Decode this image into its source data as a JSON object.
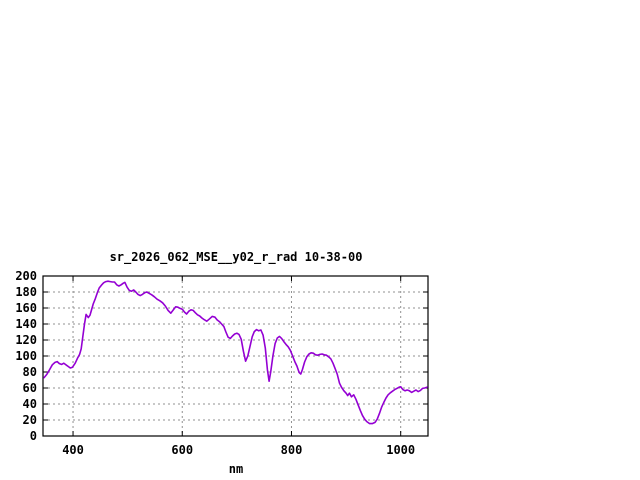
{
  "chart_data": {
    "type": "line",
    "title": "sr_2026_062_MSE__y02_r_rad 10-38-00",
    "xlabel": "nm",
    "ylabel": "",
    "xlim": [
      345,
      1050
    ],
    "ylim": [
      0,
      200
    ],
    "xticks": [
      400,
      600,
      800,
      1000
    ],
    "yticks": [
      0,
      20,
      40,
      60,
      80,
      100,
      120,
      140,
      160,
      180,
      200
    ],
    "grid": true,
    "legend_position": "none",
    "colors": {
      "line": "#9400d3",
      "grid": "#909090",
      "axis": "#000000",
      "background": "#ffffff"
    },
    "series": [
      {
        "name": "sr_2026_062_MSE__y02_r_rad",
        "x": [
          347,
          352,
          357,
          362,
          367,
          371,
          375,
          379,
          383,
          387,
          391,
          395,
          399,
          404,
          408,
          412,
          415,
          418,
          421,
          424,
          428,
          431,
          434,
          437,
          441,
          445,
          448,
          452,
          456,
          460,
          464,
          468,
          472,
          476,
          480,
          484,
          488,
          492,
          495,
          499,
          503,
          507,
          511,
          515,
          519,
          523,
          527,
          531,
          535,
          539,
          544,
          549,
          554,
          559,
          564,
          569,
          574,
          579,
          584,
          588,
          592,
          596,
          600,
          604,
          608,
          612,
          616,
          620,
          624,
          628,
          632,
          636,
          640,
          645,
          650,
          655,
          660,
          664,
          668,
          672,
          676,
          680,
          684,
          688,
          692,
          696,
          700,
          704,
          708,
          712,
          716,
          720,
          724,
          728,
          732,
          736,
          740,
          744,
          748,
          752,
          756,
          759,
          762,
          766,
          770,
          774,
          778,
          782,
          786,
          790,
          794,
          798,
          802,
          806,
          810,
          814,
          817,
          820,
          824,
          828,
          832,
          836,
          840,
          844,
          848,
          852,
          856,
          860,
          864,
          868,
          872,
          876,
          880,
          884,
          888,
          892,
          896,
          900,
          903,
          906,
          910,
          914,
          918,
          922,
          926,
          930,
          934,
          938,
          943,
          948,
          953,
          957,
          961,
          965,
          969,
          973,
          977,
          981,
          985,
          989,
          993,
          997,
          1000,
          1004,
          1008,
          1012,
          1016,
          1020,
          1024,
          1028,
          1032,
          1036,
          1040,
          1044,
          1048
        ],
        "y": [
          73,
          77,
          83,
          89,
          92,
          93,
          90.5,
          89.5,
          91,
          89,
          87,
          85,
          86,
          91,
          97,
          102,
          109,
          125,
          140,
          152,
          148,
          151,
          158,
          165,
          172,
          180,
          185,
          188.5,
          191.5,
          193,
          193.5,
          193,
          192.5,
          192.5,
          189,
          187.5,
          189,
          191,
          192,
          186,
          182,
          181,
          182.5,
          180,
          177,
          175.5,
          177,
          179,
          180,
          178.5,
          176.5,
          174,
          171,
          169,
          166.5,
          162.5,
          157,
          153.5,
          158,
          161.5,
          161,
          159.5,
          158.5,
          155,
          152.5,
          156,
          157.8,
          157,
          154,
          151.5,
          150,
          147.5,
          145.5,
          143.5,
          146.5,
          149.5,
          148.5,
          145,
          143,
          140,
          137,
          130,
          123.5,
          122,
          125,
          127.5,
          128.5,
          127,
          121,
          106,
          93.5,
          100,
          112,
          124,
          130.5,
          133,
          131.5,
          132.5,
          126,
          110,
          83,
          68.5,
          80,
          100,
          115.5,
          122.5,
          124.5,
          122,
          118,
          114.5,
          111.5,
          107,
          100,
          93,
          87.5,
          79.5,
          77.5,
          83,
          92.5,
          99,
          102.5,
          104,
          103.5,
          101.5,
          101,
          102,
          102.5,
          101.5,
          101,
          99,
          96.5,
          91,
          84,
          77,
          66,
          60.5,
          56.5,
          53.5,
          50.5,
          53.5,
          49,
          51.5,
          46,
          39,
          32,
          25.5,
          21,
          18,
          15.5,
          15.5,
          17,
          21,
          28,
          36,
          42,
          47.5,
          51.5,
          54,
          56,
          58,
          59.5,
          61,
          61.5,
          58,
          56.5,
          57.5,
          56.5,
          54.5,
          56,
          57.5,
          55.5,
          57,
          59.5,
          60,
          61
        ]
      }
    ]
  }
}
